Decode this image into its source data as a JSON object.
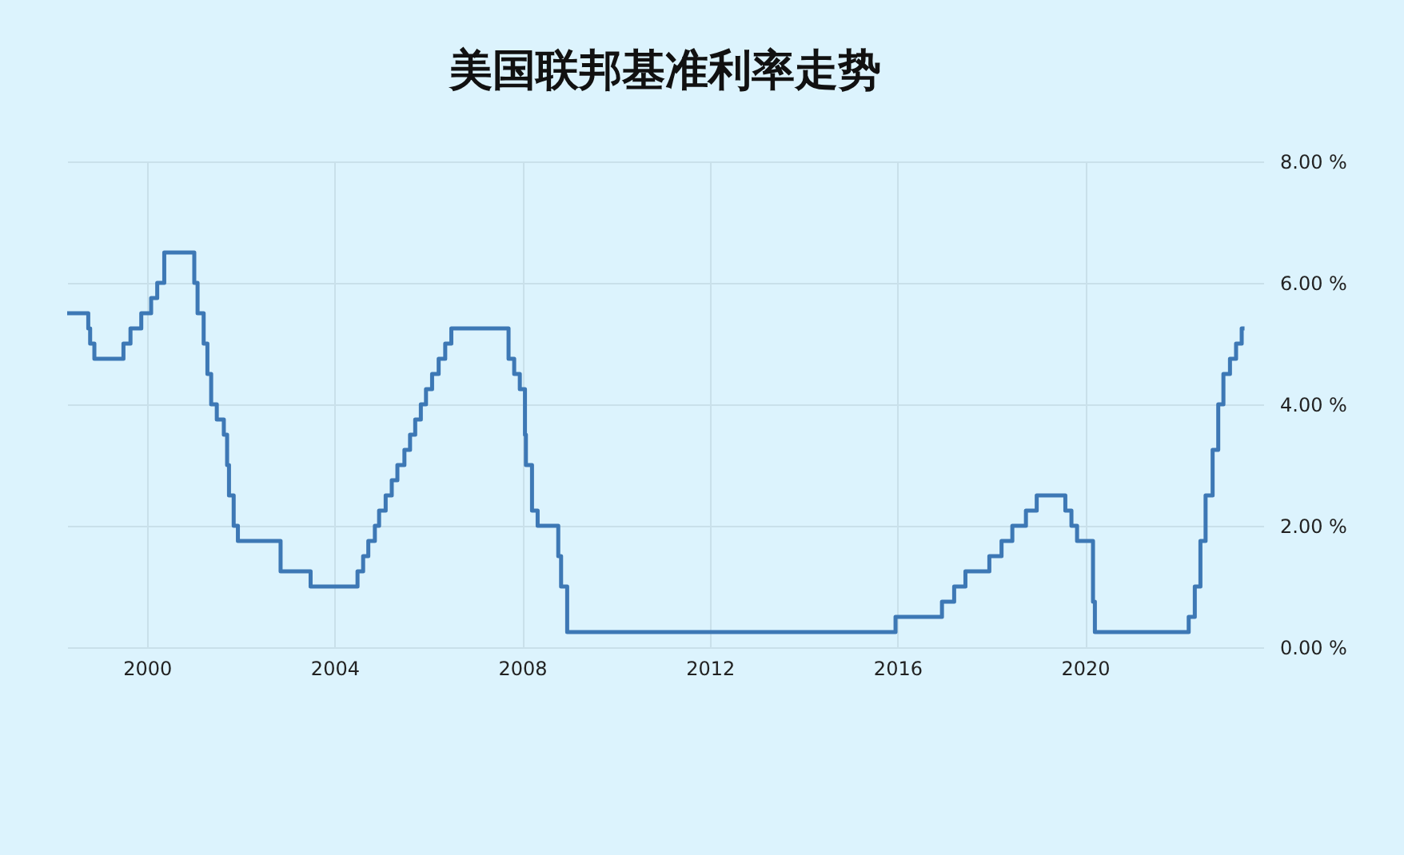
{
  "chart_data": {
    "type": "step",
    "title": "美国联邦基准利率走势",
    "x": [
      1998.3,
      1998.75,
      1998.79,
      1998.88,
      1999.5,
      1999.65,
      1999.88,
      2000.09,
      2000.22,
      2000.37,
      2001.01,
      2001.08,
      2001.21,
      2001.29,
      2001.37,
      2001.49,
      2001.64,
      2001.71,
      2001.75,
      2001.85,
      2001.94,
      2002.85,
      2003.49,
      2004.49,
      2004.61,
      2004.72,
      2004.86,
      2004.95,
      2005.09,
      2005.22,
      2005.34,
      2005.49,
      2005.61,
      2005.72,
      2005.84,
      2005.95,
      2006.08,
      2006.22,
      2006.36,
      2006.49,
      2007.71,
      2007.83,
      2007.95,
      2008.06,
      2008.08,
      2008.21,
      2008.33,
      2008.77,
      2008.83,
      2008.96,
      2015.96,
      2016.95,
      2017.21,
      2017.45,
      2017.96,
      2018.22,
      2018.45,
      2018.74,
      2018.97,
      2019.58,
      2019.71,
      2019.83,
      2020.17,
      2020.21,
      2022.21,
      2022.34,
      2022.46,
      2022.57,
      2022.72,
      2022.84,
      2022.95,
      2023.09,
      2023.22,
      2023.34,
      2023.4
    ],
    "series": [
      {
        "color": "#3d78b5",
        "values": [
          5.5,
          5.25,
          5.0,
          4.75,
          5.0,
          5.25,
          5.5,
          5.75,
          6.0,
          6.5,
          6.0,
          5.5,
          5.0,
          4.5,
          4.0,
          3.75,
          3.5,
          3.0,
          2.5,
          2.0,
          1.75,
          1.25,
          1.0,
          1.25,
          1.5,
          1.75,
          2.0,
          2.25,
          2.5,
          2.75,
          3.0,
          3.25,
          3.5,
          3.75,
          4.0,
          4.25,
          4.5,
          4.75,
          5.0,
          5.25,
          4.75,
          4.5,
          4.25,
          3.5,
          3.0,
          2.25,
          2.0,
          1.5,
          1.0,
          0.25,
          0.5,
          0.75,
          1.0,
          1.25,
          1.5,
          1.75,
          2.0,
          2.25,
          2.5,
          2.25,
          2.0,
          1.75,
          0.75,
          0.25,
          0.5,
          1.0,
          1.75,
          2.5,
          3.25,
          4.0,
          4.5,
          4.75,
          5.0,
          5.25,
          5.25
        ]
      }
    ],
    "xlim": [
      1998.3,
      2023.8
    ],
    "xticks": [
      2000,
      2004,
      2008,
      2012,
      2016,
      2020
    ],
    "ylim": [
      0,
      8
    ],
    "yticks": [
      {
        "value": 0,
        "label": "0.00 %"
      },
      {
        "value": 2,
        "label": "2.00 %"
      },
      {
        "value": 4,
        "label": "4.00 %"
      },
      {
        "value": 6,
        "label": "6.00 %"
      },
      {
        "value": 8,
        "label": "8.00 %"
      }
    ],
    "grid": true
  }
}
